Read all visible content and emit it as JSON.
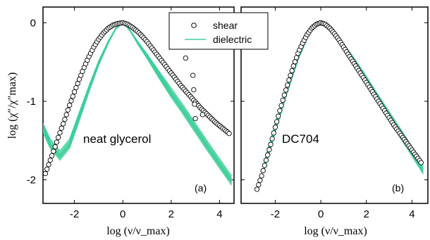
{
  "chart_data": [
    {
      "type": "scatter",
      "panel": "a",
      "panel_label": "(a)",
      "annotation": "neat glycerol",
      "xlabel": "log (ν/ν_max)",
      "ylabel": "log (χ″/χ″max)",
      "xlim": [
        -3.3,
        4.6
      ],
      "ylim": [
        -2.3,
        0.2
      ],
      "xticks": [
        "-2",
        "0",
        "2",
        "4"
      ],
      "yticks": [
        "0",
        "-1",
        "-2"
      ],
      "legend": {
        "position": "top-right",
        "entries": [
          "shear",
          "dielectric"
        ]
      },
      "series": [
        {
          "name": "shear",
          "marker": "open-circle",
          "x": [
            -3.2,
            -3.0,
            -2.8,
            -2.6,
            -2.4,
            -2.2,
            -2.0,
            -1.8,
            -1.6,
            -1.4,
            -1.2,
            -1.0,
            -0.8,
            -0.6,
            -0.4,
            -0.2,
            0.0,
            0.2,
            0.4,
            0.6,
            0.8,
            1.0,
            1.2,
            1.4,
            1.6,
            1.8,
            2.0,
            2.2,
            2.4,
            2.6,
            2.8,
            3.0,
            3.2,
            3.4,
            3.6,
            3.8,
            4.0,
            4.2,
            4.4,
            2.6,
            2.9,
            3.0,
            3.3
          ],
          "y": [
            -1.92,
            -1.75,
            -1.58,
            -1.4,
            -1.23,
            -1.05,
            -0.88,
            -0.72,
            -0.57,
            -0.43,
            -0.31,
            -0.21,
            -0.13,
            -0.07,
            -0.03,
            -0.01,
            0.0,
            -0.02,
            -0.06,
            -0.11,
            -0.17,
            -0.24,
            -0.32,
            -0.4,
            -0.48,
            -0.56,
            -0.64,
            -0.72,
            -0.8,
            -0.87,
            -0.94,
            -1.01,
            -1.08,
            -1.14,
            -1.2,
            -1.26,
            -1.31,
            -1.36,
            -1.41,
            -0.45,
            -0.67,
            -1.22,
            -1.17
          ]
        },
        {
          "name": "dielectric",
          "type": "line",
          "x": [
            -3.3,
            -3.0,
            -2.6,
            -2.2,
            -1.8,
            -1.4,
            -1.0,
            -0.6,
            -0.3,
            0.0,
            0.3,
            0.6,
            1.0,
            1.5,
            2.0,
            2.5,
            3.0,
            3.5,
            4.0,
            4.5
          ],
          "y": [
            -1.35,
            -1.55,
            -1.7,
            -1.55,
            -1.2,
            -0.85,
            -0.52,
            -0.25,
            -0.08,
            0.0,
            -0.1,
            -0.25,
            -0.43,
            -0.67,
            -0.9,
            -1.12,
            -1.35,
            -1.58,
            -1.8,
            -2.02
          ]
        }
      ]
    },
    {
      "type": "scatter",
      "panel": "b",
      "panel_label": "(b)",
      "annotation": "DC704",
      "xlabel": "log (ν/ν_max)",
      "xlim": [
        -3.5,
        4.7
      ],
      "ylim": [
        -2.3,
        0.2
      ],
      "xticks": [
        "-2",
        "0",
        "2",
        "4"
      ],
      "series": [
        {
          "name": "shear",
          "marker": "open-circle",
          "x": [
            -2.8,
            -2.6,
            -2.4,
            -2.2,
            -2.0,
            -1.8,
            -1.6,
            -1.4,
            -1.2,
            -1.0,
            -0.8,
            -0.6,
            -0.4,
            -0.2,
            0.0,
            0.2,
            0.4,
            0.6,
            0.8,
            1.0,
            1.2,
            1.4,
            1.6,
            1.8,
            2.0,
            2.2,
            2.4,
            2.6,
            2.8,
            3.0,
            3.2,
            3.4,
            3.6,
            3.8,
            4.0,
            4.2,
            4.4
          ],
          "y": [
            -2.12,
            -1.95,
            -1.75,
            -1.55,
            -1.33,
            -1.12,
            -0.92,
            -0.73,
            -0.55,
            -0.39,
            -0.26,
            -0.15,
            -0.07,
            -0.02,
            0.0,
            -0.02,
            -0.07,
            -0.14,
            -0.22,
            -0.31,
            -0.4,
            -0.49,
            -0.58,
            -0.67,
            -0.76,
            -0.85,
            -0.94,
            -1.03,
            -1.12,
            -1.21,
            -1.3,
            -1.38,
            -1.46,
            -1.54,
            -1.62,
            -1.7,
            -1.78
          ]
        },
        {
          "name": "dielectric",
          "type": "line",
          "x": [
            -2.5,
            -2.0,
            -1.5,
            -1.0,
            -0.5,
            0.0,
            0.5,
            1.0,
            1.5,
            2.0,
            2.5,
            3.0,
            3.5,
            4.0,
            4.5
          ],
          "y": [
            -1.85,
            -1.35,
            -0.88,
            -0.45,
            -0.12,
            0.0,
            -0.12,
            -0.3,
            -0.52,
            -0.75,
            -0.98,
            -1.2,
            -1.42,
            -1.65,
            -1.88
          ]
        }
      ]
    }
  ]
}
